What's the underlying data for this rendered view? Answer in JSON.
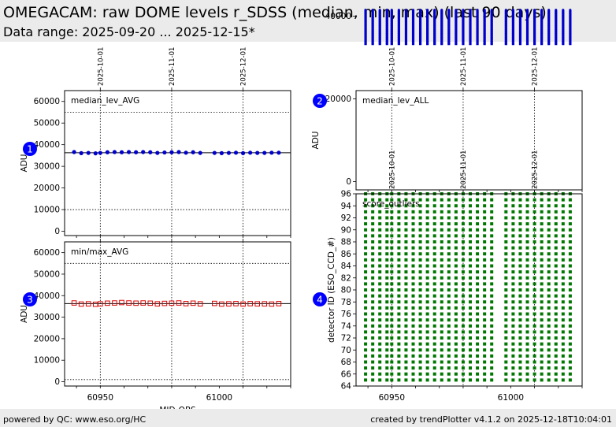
{
  "header": {
    "title": "OMEGACAM: raw DOME levels r_SDSS (median, min, max) (last 90 days)",
    "subtitle": "Data range: 2025-09-20 ... 2025-12-15*"
  },
  "footer": {
    "left": "powered by QC: www.eso.org/HC",
    "right": "created by trendPlotter v4.1.2 on 2025-12-18T10:04:01"
  },
  "colors": {
    "blue": "#0000cc",
    "red": "#dd0000",
    "green": "#007700",
    "marker_badge": "#0000ff"
  },
  "chart_data": [
    {
      "id": 1,
      "type": "scatter",
      "label": "median_lev_AVG",
      "xlabel": "",
      "ylabel": "ADU",
      "xlim": [
        60935,
        61030
      ],
      "ylim": [
        -2000,
        65000
      ],
      "yticks": [
        0,
        10000,
        20000,
        30000,
        40000,
        50000,
        60000
      ],
      "date_ticks": [
        {
          "x": 60950,
          "label": "2025-10-01"
        },
        {
          "x": 60980,
          "label": "2025-11-01"
        },
        {
          "x": 61010,
          "label": "2025-12-01"
        }
      ],
      "hlines": [
        {
          "y": 36300,
          "style": "solid"
        },
        {
          "y": 55000,
          "style": "dotted"
        },
        {
          "y": 10000,
          "style": "dotted"
        }
      ],
      "marker": "filled-circle",
      "color": "#0000cc",
      "x": [
        60939,
        60942,
        60945,
        60948,
        60950,
        60953,
        60956,
        60959,
        60962,
        60965,
        60968,
        60971,
        60974,
        60977,
        60980,
        60983,
        60986,
        60989,
        60992,
        60998,
        61001,
        61004,
        61007,
        61010,
        61013,
        61016,
        61019,
        61022,
        61025
      ],
      "y": [
        36600,
        36100,
        36200,
        36000,
        36200,
        36500,
        36600,
        36500,
        36600,
        36500,
        36600,
        36500,
        36200,
        36400,
        36500,
        36600,
        36300,
        36500,
        36200,
        36200,
        36100,
        36200,
        36300,
        36100,
        36300,
        36200,
        36200,
        36300,
        36300
      ]
    },
    {
      "id": 2,
      "type": "scatter",
      "label": "median_lev_ALL",
      "xlabel": "",
      "ylabel": "ADU",
      "xlim": [
        60935,
        61030
      ],
      "ylim": [
        -2000,
        22000
      ],
      "yticks": [
        0,
        20000,
        40000
      ],
      "date_ticks": [
        {
          "x": 60950,
          "label": "2025-10-01"
        },
        {
          "x": 60980,
          "label": "2025-11-01"
        },
        {
          "x": 61010,
          "label": "2025-12-01"
        }
      ],
      "hlines": [
        {
          "y": 36300,
          "style": "solid"
        }
      ],
      "marker": "filled-circle-stack",
      "color": "#0000cc",
      "x": [
        60939,
        60942,
        60945,
        60948,
        60950,
        60953,
        60956,
        60959,
        60962,
        60965,
        60968,
        60971,
        60974,
        60977,
        60980,
        60983,
        60986,
        60989,
        60992,
        60998,
        61001,
        61004,
        61007,
        61010,
        61013,
        61016,
        61019,
        61022,
        61025
      ],
      "y_min": 33000,
      "y_max": 41500
    },
    {
      "id": 3,
      "type": "scatter",
      "label": "min/max_AVG",
      "xlabel": "MJD-OBS",
      "ylabel": "ADU",
      "xlim": [
        60935,
        61030
      ],
      "ylim": [
        -2000,
        65000
      ],
      "yticks": [
        0,
        10000,
        20000,
        30000,
        40000,
        50000,
        60000
      ],
      "xticks": [
        60950,
        61000
      ],
      "date_ticks": [
        {
          "x": 60950,
          "label": ""
        },
        {
          "x": 60980,
          "label": ""
        },
        {
          "x": 61010,
          "label": ""
        }
      ],
      "hlines": [
        {
          "y": 36300,
          "style": "solid"
        },
        {
          "y": 55000,
          "style": "dotted"
        },
        {
          "y": 1000,
          "style": "dotted"
        }
      ],
      "marker": "open-square",
      "color": "#dd0000",
      "x": [
        60939,
        60942,
        60945,
        60948,
        60950,
        60953,
        60956,
        60959,
        60962,
        60965,
        60968,
        60971,
        60974,
        60977,
        60980,
        60983,
        60986,
        60989,
        60992,
        60998,
        61001,
        61004,
        61007,
        61010,
        61013,
        61016,
        61019,
        61022,
        61025
      ],
      "y": [
        36600,
        36100,
        36200,
        36000,
        36200,
        36500,
        36600,
        36800,
        36600,
        36500,
        36600,
        36500,
        36200,
        36400,
        36500,
        36600,
        36300,
        36500,
        36200,
        36400,
        36100,
        36200,
        36300,
        36100,
        36300,
        36200,
        36200,
        36100,
        36300
      ]
    },
    {
      "id": 4,
      "type": "scatter",
      "label": "score_outliers",
      "xlabel": "",
      "ylabel": "detector ID (ESO_CCD_#)",
      "xlim": [
        60935,
        61030
      ],
      "ylim": [
        64,
        96
      ],
      "yticks": [
        64,
        66,
        68,
        70,
        72,
        74,
        76,
        78,
        80,
        82,
        84,
        86,
        88,
        90,
        92,
        94,
        96
      ],
      "xticks": [
        60950,
        61000
      ],
      "date_ticks": [
        {
          "x": 60950,
          "label": "2025-10-01"
        },
        {
          "x": 60980,
          "label": "2025-11-01"
        },
        {
          "x": 61010,
          "label": "2025-12-01"
        }
      ],
      "marker": "filled-square",
      "color": "#007700",
      "x": [
        60939,
        60942,
        60945,
        60948,
        60950,
        60953,
        60956,
        60959,
        60962,
        60965,
        60968,
        60971,
        60974,
        60977,
        60980,
        60983,
        60986,
        60989,
        60992,
        60998,
        61001,
        61004,
        61007,
        61010,
        61013,
        61016,
        61019,
        61022,
        61025
      ],
      "detector_ids": [
        65,
        66,
        67,
        68,
        69,
        70,
        71,
        72,
        73,
        74,
        75,
        76,
        77,
        78,
        79,
        80,
        81,
        82,
        83,
        84,
        85,
        86,
        87,
        88,
        89,
        90,
        91,
        92,
        93,
        94,
        95,
        96
      ]
    }
  ]
}
